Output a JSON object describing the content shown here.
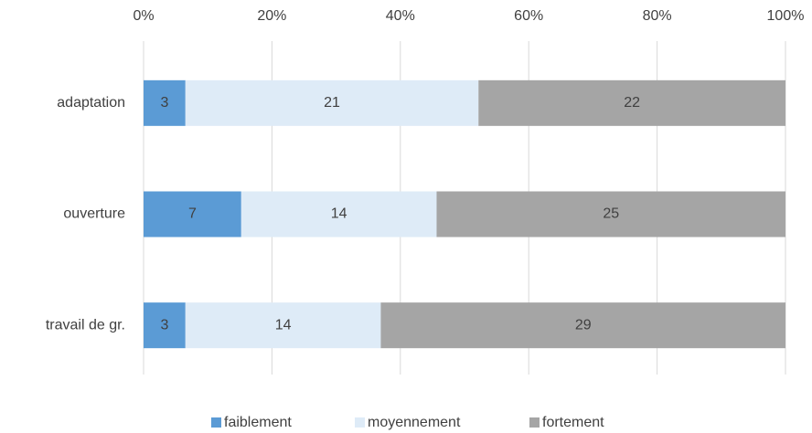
{
  "chart_data": {
    "type": "bar",
    "orientation": "horizontal",
    "stacked": "percent",
    "categories": [
      "adaptation",
      "ouverture",
      "travail de gr."
    ],
    "series": [
      {
        "name": "faiblement",
        "color": "#5b9bd5",
        "values": [
          3,
          7,
          3
        ]
      },
      {
        "name": "moyennement",
        "color": "#deebf7",
        "values": [
          21,
          14,
          14
        ]
      },
      {
        "name": "fortement",
        "color": "#a5a5a5",
        "values": [
          22,
          25,
          29
        ]
      }
    ],
    "xlim": [
      0,
      100
    ],
    "xticks": [
      {
        "value": 0,
        "label": "0%"
      },
      {
        "value": 20,
        "label": "20%"
      },
      {
        "value": 40,
        "label": "40%"
      },
      {
        "value": 60,
        "label": "60%"
      },
      {
        "value": 80,
        "label": "80%"
      },
      {
        "value": 100,
        "label": "100%"
      }
    ],
    "grid": true,
    "legend": "bottom"
  }
}
